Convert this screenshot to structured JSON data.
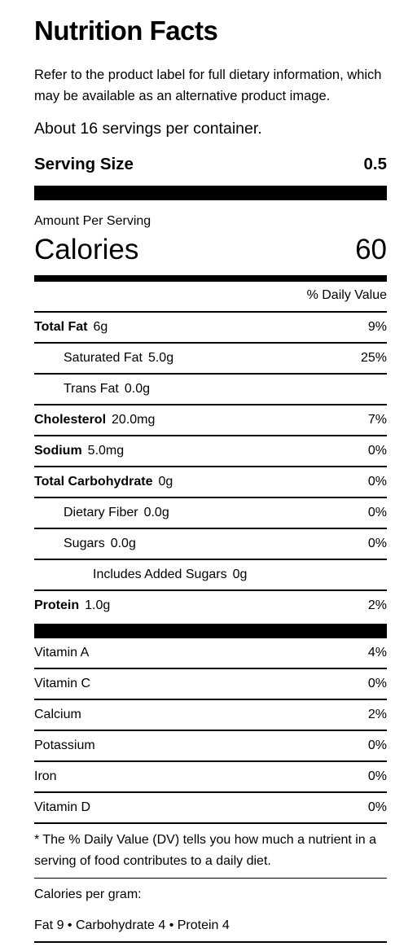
{
  "title": "Nutrition Facts",
  "disclaimer": "Refer to the product label for full dietary information, which may be available as an alternative product image.",
  "servings_per_container": "About 16 servings per container.",
  "serving_size": {
    "label": "Serving Size",
    "value": "0.5"
  },
  "amount_per_serving": "Amount Per Serving",
  "calories": {
    "label": "Calories",
    "value": "60"
  },
  "daily_value_header": "% Daily Value",
  "nutrients": [
    {
      "name": "Total Fat",
      "amount": "6g",
      "dv": "9%"
    },
    {
      "name": "Saturated Fat",
      "amount": "5.0g",
      "dv": "25%"
    },
    {
      "name": "Trans Fat",
      "amount": "0.0g",
      "dv": ""
    },
    {
      "name": "Cholesterol",
      "amount": "20.0mg",
      "dv": "7%"
    },
    {
      "name": "Sodium",
      "amount": "5.0mg",
      "dv": "0%"
    },
    {
      "name": "Total Carbohydrate",
      "amount": "0g",
      "dv": "0%"
    },
    {
      "name": "Dietary Fiber",
      "amount": "0.0g",
      "dv": "0%"
    },
    {
      "name": "Sugars",
      "amount": "0.0g",
      "dv": "0%"
    },
    {
      "name": "Includes Added Sugars",
      "amount": "0g",
      "dv": ""
    },
    {
      "name": "Protein",
      "amount": "1.0g",
      "dv": "2%"
    }
  ],
  "vitamins": [
    {
      "name": "Vitamin A",
      "dv": "4%"
    },
    {
      "name": "Vitamin C",
      "dv": "0%"
    },
    {
      "name": "Calcium",
      "dv": "2%"
    },
    {
      "name": "Potassium",
      "dv": "0%"
    },
    {
      "name": "Iron",
      "dv": "0%"
    },
    {
      "name": "Vitamin D",
      "dv": "0%"
    }
  ],
  "footnote": "* The % Daily Value (DV) tells you how much a nutrient in a serving of food contributes to a daily diet.",
  "calories_per_gram": {
    "label": "Calories per gram:",
    "values": "Fat 9 • Carbohydrate 4 • Protein 4"
  }
}
